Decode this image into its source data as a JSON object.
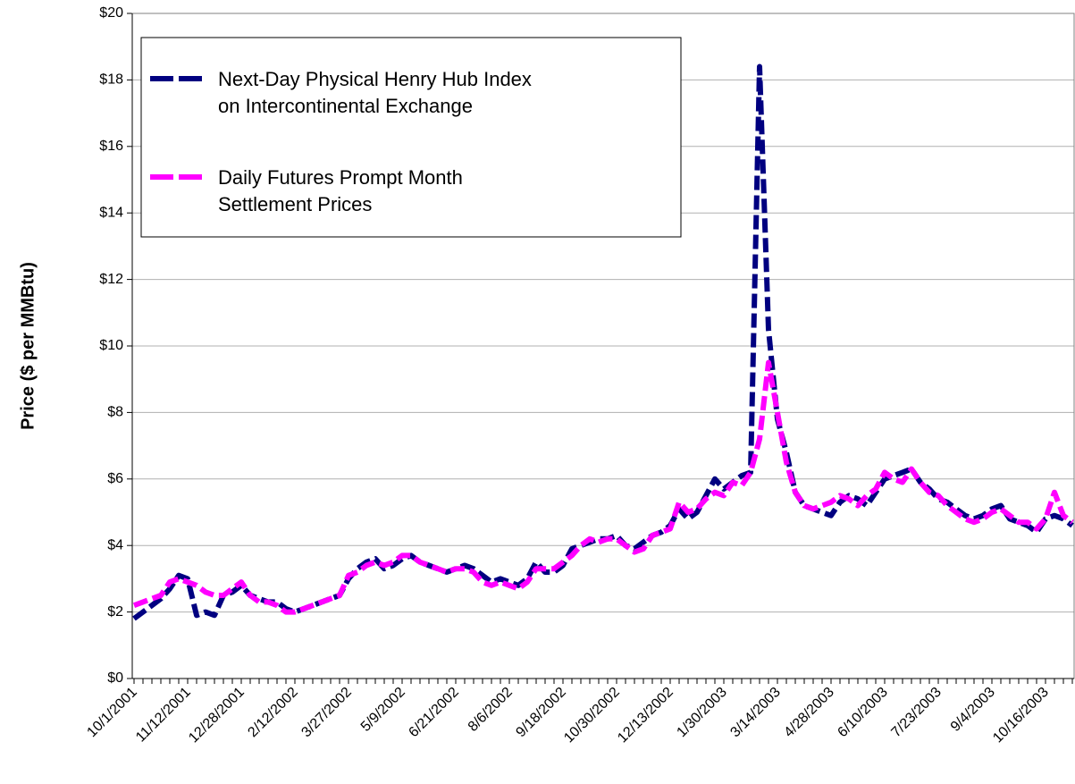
{
  "chart_data": {
    "type": "line",
    "y_label": "Price ($ per MMBtu)",
    "categories": [
      "10/1/2001",
      null,
      null,
      null,
      null,
      null,
      "11/12/2001",
      null,
      null,
      null,
      null,
      null,
      "12/28/2001",
      null,
      null,
      null,
      null,
      null,
      "2/12/2002",
      null,
      null,
      null,
      null,
      null,
      "3/27/2002",
      null,
      null,
      null,
      null,
      null,
      "5/9/2002",
      null,
      null,
      null,
      null,
      null,
      "6/21/2002",
      null,
      null,
      null,
      null,
      null,
      "8/6/2002",
      null,
      null,
      null,
      null,
      null,
      "9/18/2002",
      null,
      null,
      null,
      null,
      null,
      "10/30/2002",
      null,
      null,
      null,
      null,
      null,
      "12/13/2002",
      null,
      null,
      null,
      null,
      null,
      "1/30/2003",
      null,
      null,
      null,
      null,
      null,
      "3/14/2003",
      null,
      null,
      null,
      null,
      null,
      "4/28/2003",
      null,
      null,
      null,
      null,
      null,
      "6/10/2003",
      null,
      null,
      null,
      null,
      null,
      "7/23/2003",
      null,
      null,
      null,
      null,
      null,
      "9/4/2003",
      null,
      null,
      null,
      null,
      null,
      "10/16/2003",
      null,
      null,
      null
    ],
    "series": [
      {
        "name": "Next-Day Physical Henry Hub Index on Intercontinental Exchange",
        "color": "#000080",
        "values": [
          1.8,
          2.0,
          2.2,
          2.4,
          2.7,
          3.1,
          3.0,
          1.9,
          2.0,
          1.9,
          2.5,
          2.6,
          2.8,
          2.5,
          2.4,
          2.3,
          2.3,
          2.1,
          2.0,
          2.1,
          2.2,
          2.3,
          2.4,
          2.5,
          3.0,
          3.3,
          3.5,
          3.6,
          3.3,
          3.4,
          3.6,
          3.7,
          3.5,
          3.4,
          3.3,
          3.2,
          3.3,
          3.4,
          3.3,
          3.1,
          2.9,
          3.0,
          2.9,
          2.8,
          3.0,
          3.5,
          3.2,
          3.2,
          3.4,
          3.9,
          4.0,
          4.1,
          4.2,
          4.2,
          4.3,
          4.0,
          3.9,
          4.1,
          4.3,
          4.4,
          4.6,
          5.1,
          4.8,
          5.0,
          5.5,
          6.0,
          5.7,
          5.9,
          6.1,
          6.2,
          18.4,
          10.5,
          7.8,
          6.8,
          5.6,
          5.2,
          5.1,
          5.0,
          4.9,
          5.3,
          5.5,
          5.4,
          5.2,
          5.6,
          6.0,
          6.1,
          6.2,
          6.3,
          5.9,
          5.7,
          5.4,
          5.3,
          5.1,
          4.9,
          4.8,
          4.9,
          5.1,
          5.2,
          4.8,
          4.7,
          4.6,
          4.4,
          4.8,
          4.9,
          4.8,
          4.6
        ]
      },
      {
        "name": "Daily Futures Prompt Month Settlement Prices",
        "color": "#ff00ff",
        "values": [
          2.2,
          2.3,
          2.4,
          2.5,
          2.9,
          3.0,
          2.9,
          2.8,
          2.6,
          2.5,
          2.5,
          2.7,
          2.9,
          2.5,
          2.3,
          2.3,
          2.2,
          2.0,
          2.0,
          2.1,
          2.2,
          2.3,
          2.4,
          2.5,
          3.1,
          3.2,
          3.4,
          3.5,
          3.4,
          3.5,
          3.7,
          3.7,
          3.5,
          3.4,
          3.3,
          3.2,
          3.3,
          3.3,
          3.2,
          2.9,
          2.8,
          2.9,
          2.8,
          2.7,
          2.9,
          3.3,
          3.3,
          3.3,
          3.5,
          3.7,
          4.0,
          4.2,
          4.1,
          4.2,
          4.2,
          4.0,
          3.8,
          3.9,
          4.3,
          4.4,
          4.5,
          5.3,
          5.0,
          5.1,
          5.4,
          5.6,
          5.5,
          5.9,
          5.8,
          6.2,
          7.2,
          9.5,
          8.0,
          6.5,
          5.6,
          5.2,
          5.1,
          5.2,
          5.3,
          5.5,
          5.4,
          5.2,
          5.5,
          5.7,
          6.2,
          6.0,
          5.9,
          6.3,
          5.9,
          5.6,
          5.5,
          5.2,
          5.0,
          4.8,
          4.7,
          4.8,
          5.0,
          5.1,
          4.9,
          4.7,
          4.7,
          4.5,
          4.8,
          5.6,
          4.9,
          4.7
        ]
      }
    ],
    "ylim": [
      0,
      20
    ],
    "yticks": [
      {
        "value": 0,
        "label": "$0"
      },
      {
        "value": 2,
        "label": "$2"
      },
      {
        "value": 4,
        "label": "$4"
      },
      {
        "value": 6,
        "label": "$6"
      },
      {
        "value": 8,
        "label": "$8"
      },
      {
        "value": 10,
        "label": "$10"
      },
      {
        "value": 12,
        "label": "$12"
      },
      {
        "value": 14,
        "label": "$14"
      },
      {
        "value": 16,
        "label": "$16"
      },
      {
        "value": 18,
        "label": "$18"
      },
      {
        "value": 20,
        "label": "$20"
      }
    ],
    "grid": true,
    "legend": "upper left"
  }
}
